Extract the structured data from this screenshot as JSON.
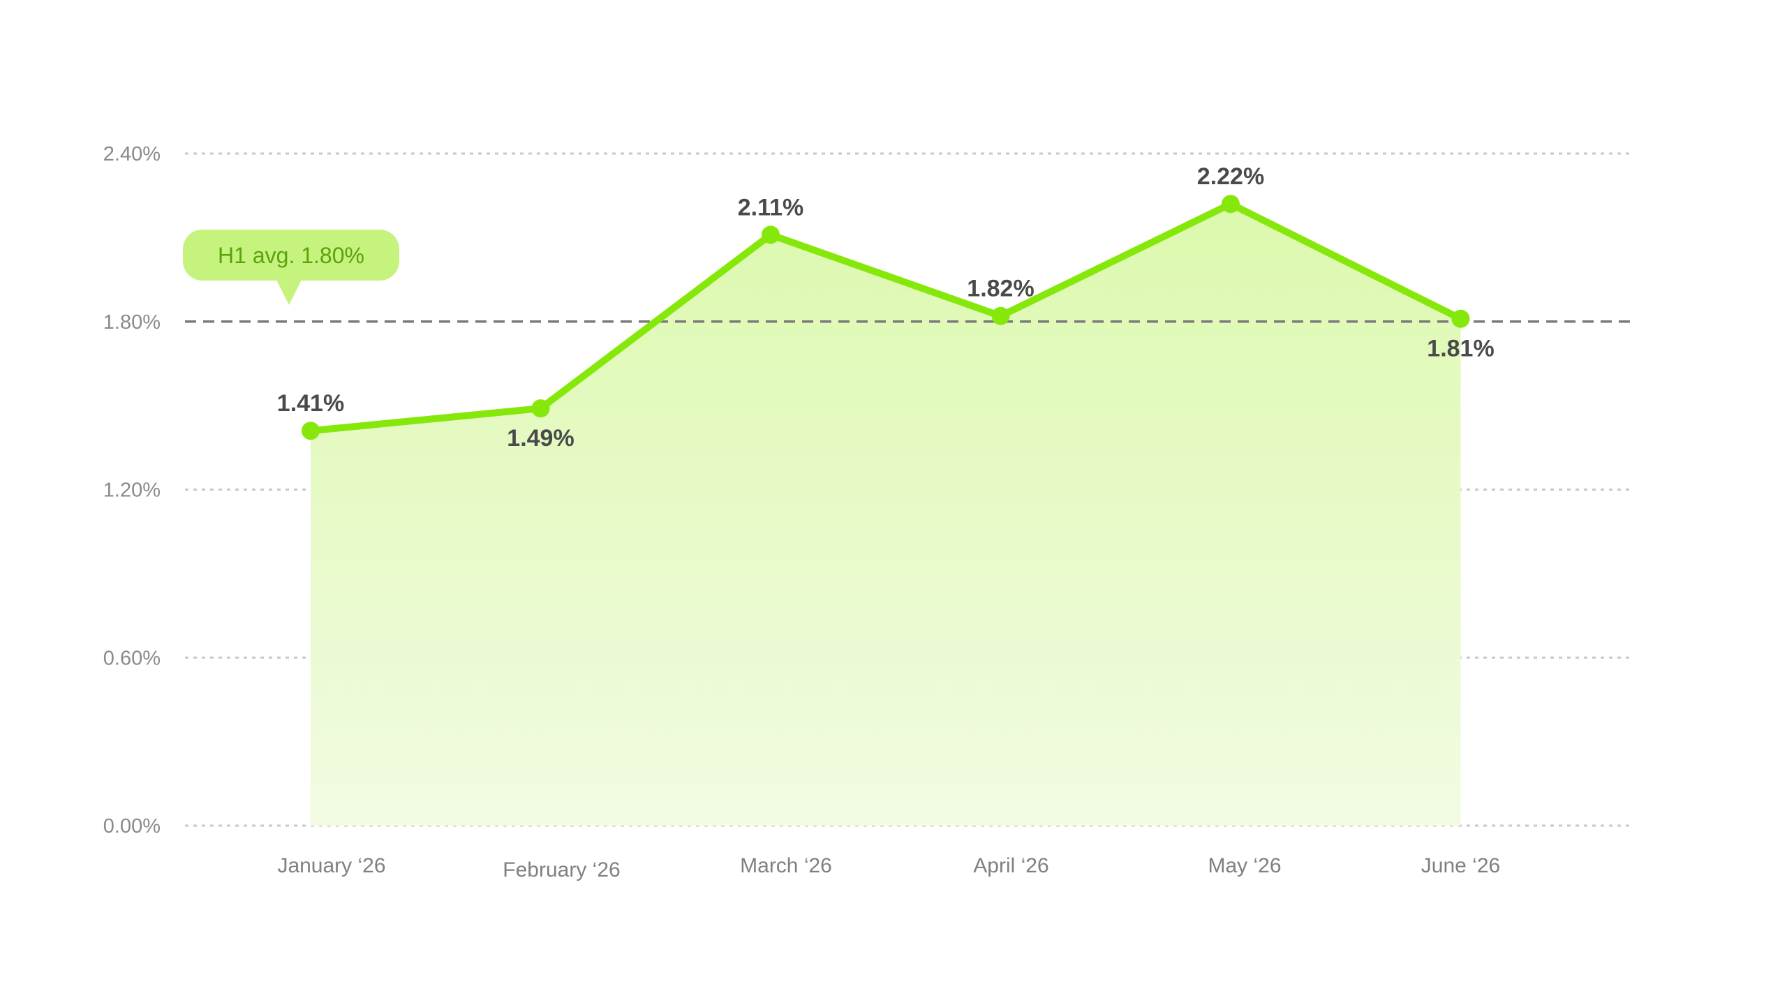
{
  "chart_data": {
    "type": "area",
    "categories": [
      "January ‘26",
      "February ‘26",
      "March ‘26",
      "April ‘26",
      "May ‘26",
      "June ‘26"
    ],
    "series": [
      {
        "values": [
          1.41,
          1.49,
          2.11,
          1.82,
          2.22,
          1.81
        ],
        "labels": [
          "1.41%",
          "1.49%",
          "2.11%",
          "1.82%",
          "2.22%",
          "1.81%"
        ],
        "label_positions": [
          "above",
          "below",
          "above",
          "above",
          "above",
          "below"
        ]
      }
    ],
    "y_ticks": [
      0,
      0.6,
      1.2,
      1.8,
      2.4
    ],
    "y_tick_labels": [
      "0.00%",
      "0.60%",
      "1.20%",
      "1.80%",
      "2.40%"
    ],
    "ylim": [
      0,
      2.4
    ],
    "grid": true,
    "reference_line": {
      "value": 1.8,
      "label": "H1 avg. 1.80%"
    },
    "colors": {
      "line": "#86e80a",
      "fill_top": "#dcf9ae",
      "fill_bottom": "#f2fbe2",
      "grid": "#c8c8c8",
      "reference_line": "#7a7a7a",
      "callout_bg": "#c6f27e",
      "callout_text": "#5aa30c"
    }
  }
}
